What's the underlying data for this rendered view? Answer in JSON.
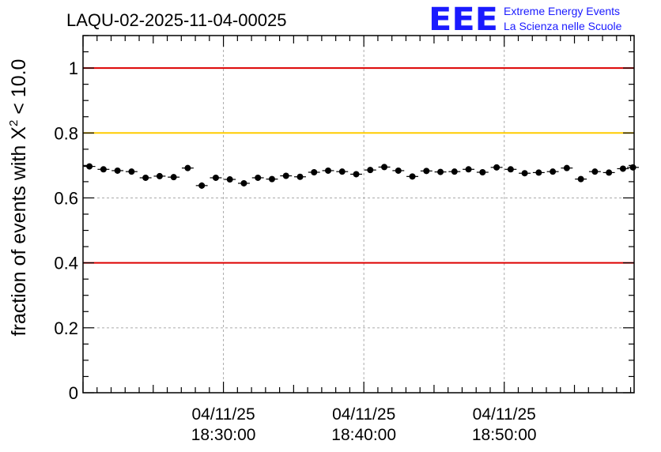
{
  "logo": {
    "mark": "EEE",
    "line1": "Extreme Energy Events",
    "line2": "La Scienza nelle Scuole",
    "color": "#1a1aff"
  },
  "chart_data": {
    "type": "scatter",
    "title": "LAQU-02-2025-11-04-00025",
    "ylabel_prefix": "fraction of events with ",
    "ylabel_symbol": "X",
    "ylabel_sup": "2",
    "ylabel_suffix": " < 10.0",
    "xlabel": "",
    "ylim": [
      0,
      1.1
    ],
    "yticks": [
      0,
      0.2,
      0.4,
      0.6,
      0.8,
      1
    ],
    "ytick_labels": [
      "0",
      "0.2",
      "0.4",
      "0.6",
      "0.8",
      "1"
    ],
    "xlim_minutes": [
      18.333,
      57.583
    ],
    "xticks": [
      {
        "minute": 28.333,
        "date": "04/11/25",
        "time": "18:30:00"
      },
      {
        "minute": 38.333,
        "date": "04/11/25",
        "time": "18:40:00"
      },
      {
        "minute": 48.333,
        "date": "04/11/25",
        "time": "18:50:00"
      }
    ],
    "grid": true,
    "reference_lines": [
      {
        "value": 1.0,
        "color": "#dd0000"
      },
      {
        "value": 0.8,
        "color": "#ffcc00"
      },
      {
        "value": 0.4,
        "color": "#dd0000"
      }
    ],
    "series": [
      {
        "color": "#000000",
        "x_minutes": [
          18.79,
          19.79,
          20.79,
          21.79,
          22.79,
          23.79,
          24.79,
          25.79,
          26.79,
          27.79,
          28.79,
          29.79,
          30.79,
          31.79,
          32.79,
          33.79,
          34.79,
          35.79,
          36.79,
          37.79,
          38.79,
          39.79,
          40.79,
          41.79,
          42.79,
          43.79,
          44.79,
          45.79,
          46.79,
          47.79,
          48.79,
          49.79,
          50.79,
          51.79,
          52.79,
          53.79,
          54.79,
          55.79,
          56.79,
          57.5
        ],
        "values": [
          0.697,
          0.688,
          0.684,
          0.681,
          0.662,
          0.667,
          0.664,
          0.692,
          0.638,
          0.662,
          0.657,
          0.645,
          0.662,
          0.658,
          0.668,
          0.665,
          0.679,
          0.684,
          0.681,
          0.673,
          0.686,
          0.695,
          0.684,
          0.666,
          0.683,
          0.68,
          0.681,
          0.688,
          0.679,
          0.694,
          0.688,
          0.676,
          0.678,
          0.681,
          0.692,
          0.658,
          0.681,
          0.678,
          0.69,
          0.694
        ],
        "errors": [
          0.009,
          0.009,
          0.009,
          0.009,
          0.009,
          0.009,
          0.009,
          0.009,
          0.01,
          0.009,
          0.009,
          0.009,
          0.009,
          0.009,
          0.009,
          0.009,
          0.009,
          0.009,
          0.009,
          0.009,
          0.009,
          0.009,
          0.009,
          0.009,
          0.009,
          0.009,
          0.009,
          0.009,
          0.009,
          0.009,
          0.009,
          0.009,
          0.009,
          0.009,
          0.009,
          0.009,
          0.009,
          0.009,
          0.009,
          0.009
        ],
        "bin_half_width_minutes": 0.42
      }
    ]
  }
}
